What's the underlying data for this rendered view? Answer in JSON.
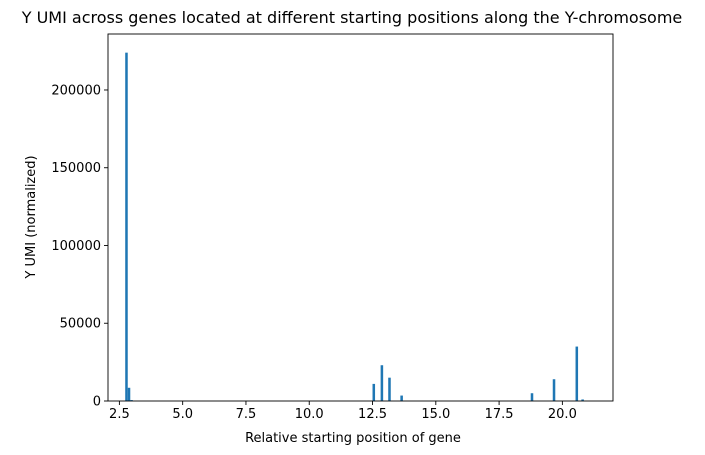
{
  "chart_data": {
    "type": "bar",
    "title": "Y UMI across genes located at different starting positions along the Y-chromosome",
    "xlabel": "Relative starting position of gene",
    "ylabel": "Y UMI (normalized)",
    "xlim": [
      2.05,
      22.0
    ],
    "ylim": [
      0,
      236000
    ],
    "xticks": [
      2.5,
      5.0,
      7.5,
      10.0,
      12.5,
      15.0,
      17.5,
      20.0
    ],
    "xtick_labels": [
      "2.5",
      "5.0",
      "7.5",
      "10.0",
      "12.5",
      "15.0",
      "17.5",
      "20.0"
    ],
    "yticks": [
      0,
      50000,
      100000,
      150000,
      200000
    ],
    "ytick_labels": [
      "0",
      "50000",
      "100000",
      "150000",
      "200000"
    ],
    "bar_color": "#1f77b4",
    "bar_width": 0.1,
    "x": [
      2.78,
      2.88,
      2.98,
      12.55,
      12.87,
      13.17,
      13.65,
      18.8,
      19.67,
      20.57,
      20.8
    ],
    "values": [
      224000,
      8500,
      600,
      11000,
      23000,
      15000,
      3500,
      5000,
      14000,
      35000,
      1000
    ]
  }
}
